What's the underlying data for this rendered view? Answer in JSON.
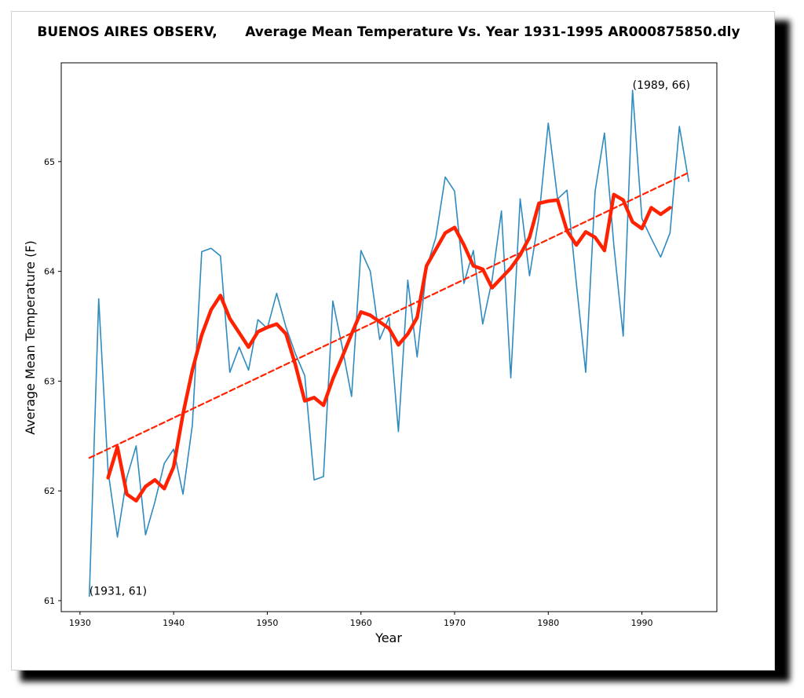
{
  "chart_data": {
    "type": "line",
    "title": "BUENOS AIRES OBSERV,      Average Mean Temperature Vs. Year 1931-1995 AR000875850.dly",
    "xlabel": "Year",
    "ylabel": "Average Mean Temperature (F)",
    "xlim": [
      1928,
      1998
    ],
    "ylim": [
      60.9,
      65.9
    ],
    "x_ticks": [
      1930,
      1940,
      1950,
      1960,
      1970,
      1980,
      1990
    ],
    "y_ticks": [
      61,
      62,
      63,
      64,
      65
    ],
    "grid": false,
    "colors": {
      "annual": "#2e8bc0",
      "smoothed": "#ff2200",
      "trend": "#ff2200"
    },
    "series": [
      {
        "style": "annual",
        "x": [
          1931,
          1932,
          1933,
          1934,
          1935,
          1936,
          1937,
          1938,
          1939,
          1940,
          1941,
          1942,
          1943,
          1944,
          1945,
          1946,
          1947,
          1948,
          1949,
          1950,
          1951,
          1952,
          1953,
          1954,
          1955,
          1956,
          1957,
          1958,
          1959,
          1960,
          1961,
          1962,
          1963,
          1964,
          1965,
          1966,
          1967,
          1968,
          1969,
          1970,
          1971,
          1972,
          1973,
          1974,
          1975,
          1976,
          1977,
          1978,
          1979,
          1980,
          1981,
          1982,
          1983,
          1984,
          1985,
          1986,
          1987,
          1988,
          1989,
          1990,
          1991,
          1992,
          1993,
          1994,
          1995
        ],
        "values": [
          61.04,
          63.75,
          62.18,
          61.58,
          62.12,
          62.41,
          61.6,
          61.9,
          62.25,
          62.38,
          61.97,
          62.6,
          64.18,
          64.21,
          64.14,
          63.08,
          63.31,
          63.1,
          63.56,
          63.48,
          63.8,
          63.49,
          63.25,
          63.05,
          62.1,
          62.13,
          63.73,
          63.31,
          62.86,
          64.19,
          64.0,
          63.38,
          63.58,
          62.54,
          63.92,
          63.22,
          64.03,
          64.31,
          64.86,
          64.73,
          63.89,
          64.19,
          63.52,
          63.92,
          64.55,
          63.03,
          64.66,
          63.96,
          64.49,
          65.35,
          64.66,
          64.74,
          63.89,
          63.08,
          64.73,
          65.26,
          64.24,
          63.41,
          65.65,
          64.48,
          64.3,
          64.13,
          64.35,
          65.32,
          64.82
        ]
      },
      {
        "style": "smoothed",
        "x": [
          1933,
          1934,
          1935,
          1936,
          1937,
          1938,
          1939,
          1940,
          1941,
          1942,
          1943,
          1944,
          1945,
          1946,
          1947,
          1948,
          1949,
          1950,
          1951,
          1952,
          1953,
          1954,
          1955,
          1956,
          1957,
          1958,
          1959,
          1960,
          1961,
          1962,
          1963,
          1964,
          1965,
          1966,
          1967,
          1968,
          1969,
          1970,
          1971,
          1972,
          1973,
          1974,
          1975,
          1976,
          1977,
          1978,
          1979,
          1980,
          1981,
          1982,
          1983,
          1984,
          1985,
          1986,
          1987,
          1988,
          1989,
          1990,
          1991,
          1992,
          1993
        ],
        "values": [
          62.12,
          62.4,
          61.97,
          61.91,
          62.04,
          62.1,
          62.02,
          62.22,
          62.7,
          63.1,
          63.42,
          63.65,
          63.78,
          63.57,
          63.44,
          63.31,
          63.45,
          63.49,
          63.52,
          63.43,
          63.15,
          62.82,
          62.85,
          62.78,
          63.02,
          63.22,
          63.43,
          63.63,
          63.6,
          63.54,
          63.48,
          63.33,
          63.43,
          63.58,
          64.05,
          64.2,
          64.35,
          64.4,
          64.24,
          64.05,
          64.02,
          63.85,
          63.94,
          64.03,
          64.15,
          64.31,
          64.62,
          64.64,
          64.65,
          64.37,
          64.24,
          64.36,
          64.31,
          64.19,
          64.7,
          64.65,
          64.45,
          64.39,
          64.58,
          64.52,
          64.58
        ]
      },
      {
        "style": "trend",
        "x": [
          1931,
          1995
        ],
        "values": [
          62.3,
          64.9
        ]
      }
    ],
    "annotations": [
      {
        "text": "(1931, 61)",
        "x": 1931,
        "y": 61.04
      },
      {
        "text": "(1989, 66)",
        "x": 1989,
        "y": 65.65
      }
    ]
  }
}
